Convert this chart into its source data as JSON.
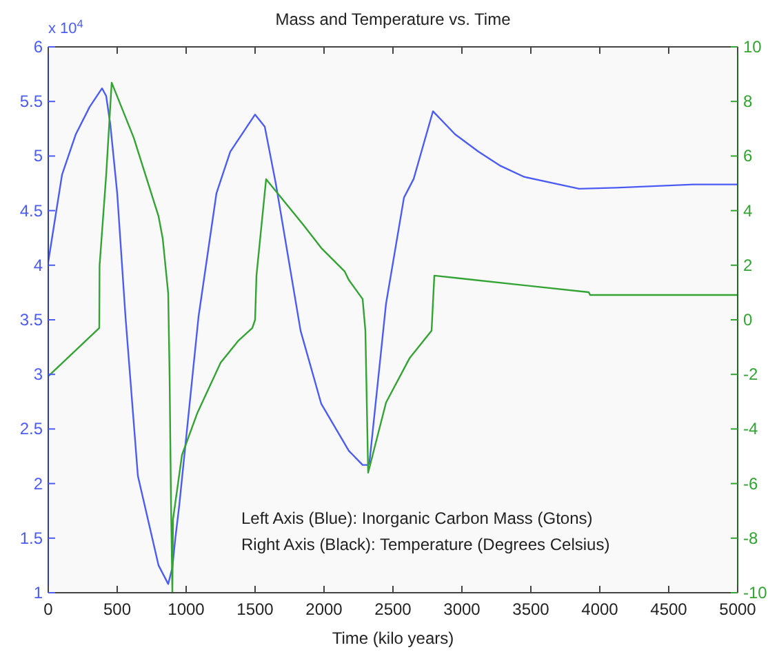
{
  "chart_data": {
    "type": "line",
    "title": "Mass and Temperature vs. Time",
    "xlabel": "Time (kilo years)",
    "annotations": [
      "x 10$^{4}$",
      "Left Axis (Blue): Inorganic Carbon Mass (Gtons)",
      "Right Axis (Black): Temperature (Degrees Celsius)"
    ],
    "xlim": [
      0,
      5000
    ],
    "xticks": [
      0,
      500,
      1000,
      1500,
      2000,
      2500,
      3000,
      3500,
      4000,
      4500,
      5000
    ],
    "ylim": [
      1,
      6
    ],
    "yticks": [
      1,
      1.5,
      2,
      2.5,
      3,
      3.5,
      4,
      4.5,
      5,
      5.5,
      6
    ],
    "y2lim": [
      -10,
      10
    ],
    "y2ticks": [
      -10,
      -8,
      -6,
      -4,
      -2,
      0,
      2,
      4,
      6,
      8,
      10
    ],
    "grid": false,
    "series": [
      {
        "color": "#4b5cf5",
        "x": [
          0,
          100,
          200,
          300,
          390,
          420,
          450,
          500,
          560,
          650,
          800,
          870,
          900,
          920,
          950,
          1090,
          1220,
          1320,
          1500,
          1570,
          1650,
          1830,
          1980,
          2180,
          2280,
          2320,
          2330,
          2450,
          2580,
          2650,
          2790,
          2950,
          3120,
          3280,
          3450,
          3850,
          4120,
          4680,
          5000
        ],
        "values": [
          4.03,
          4.83,
          5.2,
          5.45,
          5.62,
          5.55,
          5.29,
          4.66,
          3.53,
          2.07,
          1.25,
          1.08,
          1.23,
          1.48,
          1.8,
          3.53,
          4.66,
          5.04,
          5.38,
          5.27,
          4.75,
          3.4,
          2.73,
          2.3,
          2.17,
          2.17,
          2.2,
          3.65,
          4.62,
          4.79,
          5.41,
          5.2,
          5.04,
          4.91,
          4.81,
          4.7,
          4.71,
          4.74,
          4.74
        ]
      },
      {
        "color": "#33a333",
        "axis": "y2",
        "x": [
          0,
          370,
          372,
          420,
          460,
          620,
          800,
          830,
          870,
          880,
          890,
          900,
          905,
          970,
          1080,
          1250,
          1380,
          1480,
          1500,
          1510,
          1570,
          1580,
          1850,
          1980,
          2150,
          2180,
          2280,
          2300,
          2320,
          2450,
          2620,
          2780,
          2800,
          2980,
          3920,
          3930,
          5000
        ],
        "values": [
          -2.07,
          -0.3,
          1.97,
          5.3,
          8.69,
          6.67,
          3.79,
          2.98,
          0.96,
          -2.07,
          -6.6,
          -10,
          -7.3,
          -4.95,
          -3.43,
          -1.57,
          -0.76,
          -0.3,
          0,
          1.62,
          4.65,
          5.15,
          3.48,
          2.63,
          1.77,
          1.46,
          0.76,
          -0.4,
          -5.6,
          -3.03,
          -1.41,
          -0.4,
          1.62,
          1.52,
          1.01,
          0.91,
          0.91
        ]
      }
    ]
  }
}
